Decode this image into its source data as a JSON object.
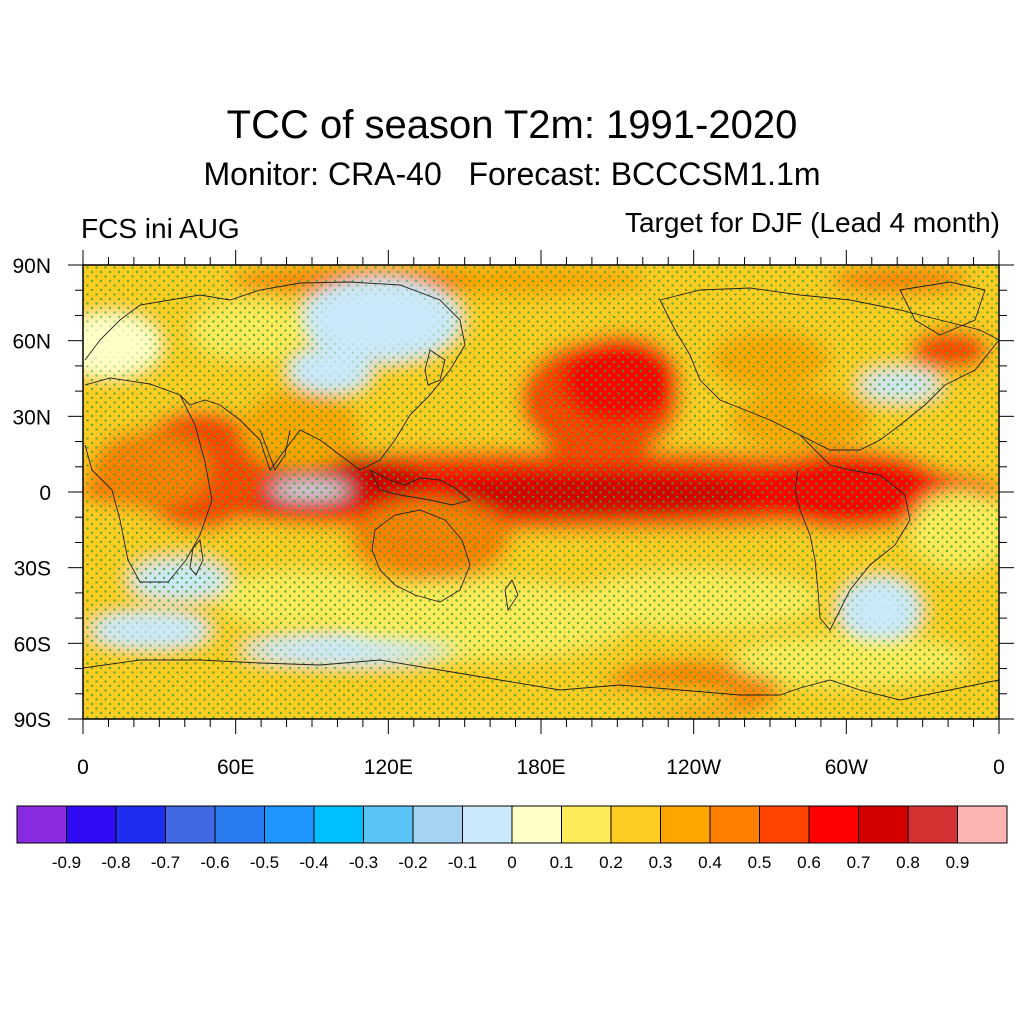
{
  "title": "TCC of season T2m: 1991-2020",
  "subtitle": "Monitor: CRA-40   Forecast: BCCCSM1.1m",
  "left_label": "FCS ini AUG",
  "right_label": "Target for DJF (Lead 4 month)",
  "map": {
    "lat_ticks": [
      "90N",
      "60N",
      "30N",
      "0",
      "30S",
      "60S",
      "90S"
    ],
    "lon_ticks": [
      "0",
      "60E",
      "120E",
      "180E",
      "120W",
      "60W",
      "0"
    ],
    "stipple_color": "#33aa33",
    "field_colors": [
      "#cbe9fa",
      "#ffffc8",
      "#ffea5a",
      "#ffcc22",
      "#ffa500",
      "#ff7f00",
      "#ff4500",
      "#ff0000",
      "#d40000"
    ]
  },
  "colorbar": {
    "colors": [
      "#8a2be2",
      "#2f0cf5",
      "#1e2df0",
      "#4169e1",
      "#2b7cf0",
      "#1e96ff",
      "#00bfff",
      "#5ac4f5",
      "#a4d4f2",
      "#cbe9fa",
      "#ffffc8",
      "#ffea5a",
      "#ffcc22",
      "#ffa500",
      "#ff7f00",
      "#ff4500",
      "#ff0000",
      "#d40000",
      "#d23232",
      "#ffb4b4"
    ],
    "labels": [
      "-0.9",
      "-0.8",
      "-0.7",
      "-0.6",
      "-0.5",
      "-0.4",
      "-0.3",
      "-0.2",
      "-0.1",
      "0",
      "0.1",
      "0.2",
      "0.3",
      "0.4",
      "0.5",
      "0.6",
      "0.7",
      "0.8",
      "0.9"
    ]
  }
}
